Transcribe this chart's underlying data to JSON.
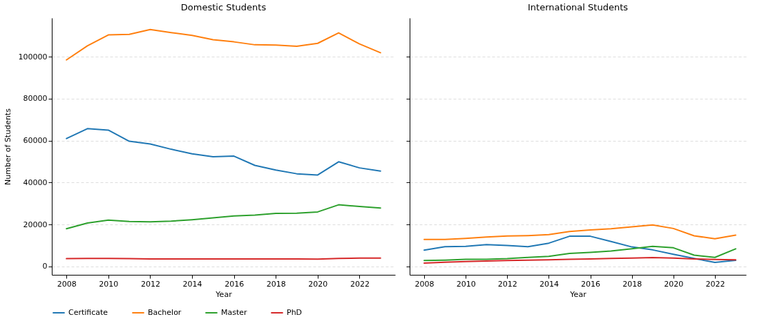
{
  "chart_data": [
    {
      "type": "line",
      "title": "Domestic Students",
      "xlabel": "Year",
      "ylabel": "Number of Students",
      "x": [
        2008,
        2009,
        2010,
        2011,
        2012,
        2013,
        2014,
        2015,
        2016,
        2017,
        2018,
        2019,
        2020,
        2021,
        2022,
        2023
      ],
      "xlim": [
        2007.3,
        2023.7
      ],
      "xticks": [
        2008,
        2010,
        2012,
        2014,
        2016,
        2018,
        2020,
        2022
      ],
      "ylim": [
        -4000,
        118500
      ],
      "yticks": [
        0,
        20000,
        40000,
        60000,
        80000,
        100000
      ],
      "grid": "y",
      "legend": "bottom",
      "marker": "none",
      "line_style": "solid",
      "series": [
        {
          "name": "Certificate",
          "color": "#1f77b4",
          "values": [
            61000,
            65700,
            65000,
            59700,
            58400,
            55900,
            53700,
            52300,
            52600,
            48200,
            46000,
            44200,
            43600,
            49900,
            47000,
            45500
          ]
        },
        {
          "name": "Bachelor",
          "color": "#ff7f0e",
          "values": [
            98500,
            105200,
            110400,
            110700,
            113000,
            111500,
            110200,
            108100,
            107100,
            105700,
            105600,
            105000,
            106400,
            111400,
            106100,
            101900
          ]
        },
        {
          "name": "Master",
          "color": "#2ca02c",
          "values": [
            18000,
            20700,
            22100,
            21400,
            21300,
            21600,
            22300,
            23200,
            24100,
            24500,
            25300,
            25400,
            26000,
            29400,
            28600,
            27900
          ]
        },
        {
          "name": "PhD",
          "color": "#d62728",
          "values": [
            3700,
            3800,
            3800,
            3700,
            3600,
            3600,
            3600,
            3600,
            3600,
            3600,
            3600,
            3600,
            3500,
            3800,
            4000,
            4000
          ]
        }
      ]
    },
    {
      "type": "line",
      "title": "International Students",
      "xlabel": "Year",
      "x": [
        2008,
        2009,
        2010,
        2011,
        2012,
        2013,
        2014,
        2015,
        2016,
        2017,
        2018,
        2019,
        2020,
        2021,
        2022,
        2023
      ],
      "xlim": [
        2007.3,
        2023.5
      ],
      "xticks": [
        2008,
        2010,
        2012,
        2014,
        2016,
        2018,
        2020,
        2022
      ],
      "ylim": [
        -4000,
        118500
      ],
      "yticks": [
        0,
        20000,
        40000,
        60000,
        80000,
        100000
      ],
      "grid": "y",
      "tick_labels": "x",
      "marker": "none",
      "line_style": "solid",
      "series": [
        {
          "name": "Certificate",
          "color": "#1f77b4",
          "values": [
            7800,
            9400,
            9600,
            10400,
            10000,
            9400,
            11100,
            14400,
            14400,
            11900,
            9300,
            7900,
            5800,
            3800,
            1900,
            2900
          ]
        },
        {
          "name": "Bachelor",
          "color": "#ff7f0e",
          "values": [
            12900,
            12900,
            13400,
            14000,
            14500,
            14700,
            15200,
            16700,
            17400,
            18000,
            18900,
            19800,
            18100,
            14600,
            13200,
            14900
          ]
        },
        {
          "name": "Master",
          "color": "#2ca02c",
          "values": [
            2800,
            3000,
            3400,
            3400,
            3700,
            4300,
            4800,
            6200,
            6700,
            7400,
            8400,
            9600,
            8900,
            5400,
            4300,
            8400
          ]
        },
        {
          "name": "PhD",
          "color": "#d62728",
          "values": [
            1600,
            2000,
            2300,
            2600,
            2800,
            3000,
            3200,
            3400,
            3600,
            3800,
            4000,
            4200,
            4000,
            3600,
            3300,
            3200
          ]
        }
      ]
    }
  ]
}
